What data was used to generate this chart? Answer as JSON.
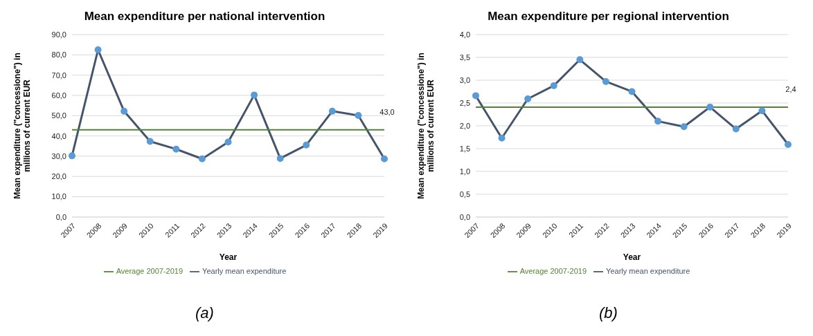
{
  "chart_data": [
    {
      "type": "line",
      "title": "Mean expenditure per national intervention",
      "xlabel": "Year",
      "ylabel": "Mean expenditure (\"concessione\") in millions of current EUR",
      "categories": [
        "2007",
        "2008",
        "2009",
        "2010",
        "2011",
        "2012",
        "2013",
        "2014",
        "2015",
        "2016",
        "2017",
        "2018",
        "2019"
      ],
      "series": [
        {
          "name": "Yearly mean expenditure",
          "color": "#44546a",
          "marker": "circle",
          "values": [
            30.2,
            82.5,
            52.2,
            37.3,
            33.5,
            28.7,
            37.0,
            60.2,
            28.9,
            35.5,
            52.2,
            50.1,
            28.7
          ]
        },
        {
          "name": "Average 2007-2019",
          "color": "#548235",
          "marker": "none",
          "values": [
            43.0,
            43.0,
            43.0,
            43.0,
            43.0,
            43.0,
            43.0,
            43.0,
            43.0,
            43.0,
            43.0,
            43.0,
            43.0
          ],
          "value_labels": [
            null,
            null,
            null,
            null,
            null,
            null,
            null,
            null,
            null,
            null,
            null,
            null,
            "43,0"
          ]
        }
      ],
      "ylim": [
        0,
        90
      ],
      "yticks": [
        {
          "value": 0,
          "label": "0,0"
        },
        {
          "value": 10,
          "label": "10,0"
        },
        {
          "value": 20,
          "label": "20,0"
        },
        {
          "value": 30,
          "label": "30,0"
        },
        {
          "value": 40,
          "label": "40,0"
        },
        {
          "value": 50,
          "label": "50,0"
        },
        {
          "value": 60,
          "label": "60,0"
        },
        {
          "value": 70,
          "label": "70,0"
        },
        {
          "value": 80,
          "label": "80,0"
        },
        {
          "value": 90,
          "label": "90,0"
        }
      ],
      "grid": "y",
      "legend": "bottom",
      "line_style": "solid",
      "annotations": [
        "(a)"
      ]
    },
    {
      "type": "line",
      "title": "Mean expenditure per regional intervention",
      "xlabel": "Year",
      "ylabel": "Mean expenditure (\"concessione\") in millions of current EUR",
      "categories": [
        "2007",
        "2008",
        "2009",
        "2010",
        "2011",
        "2012",
        "2013",
        "2014",
        "2015",
        "2016",
        "2017",
        "2018",
        "2019"
      ],
      "series": [
        {
          "name": "Yearly mean expenditure",
          "color": "#44546a",
          "marker": "circle",
          "values": [
            2.66,
            1.73,
            2.59,
            2.88,
            3.45,
            2.97,
            2.75,
            2.1,
            1.98,
            2.41,
            1.93,
            2.33,
            1.59
          ]
        },
        {
          "name": "Average 2007-2019",
          "color": "#548235",
          "marker": "none",
          "values": [
            2.41,
            2.41,
            2.41,
            2.41,
            2.41,
            2.41,
            2.41,
            2.41,
            2.41,
            2.41,
            2.41,
            2.41,
            2.41
          ],
          "value_labels": [
            null,
            null,
            null,
            null,
            null,
            null,
            null,
            null,
            null,
            null,
            null,
            null,
            "2,4"
          ]
        }
      ],
      "ylim": [
        0,
        4
      ],
      "yticks": [
        {
          "value": 0,
          "label": "0,0"
        },
        {
          "value": 0.5,
          "label": "0,5"
        },
        {
          "value": 1,
          "label": "1,0"
        },
        {
          "value": 1.5,
          "label": "1,5"
        },
        {
          "value": 2,
          "label": "2,0"
        },
        {
          "value": 2.5,
          "label": "2,5"
        },
        {
          "value": 3,
          "label": "3,0"
        },
        {
          "value": 3.5,
          "label": "3,5"
        },
        {
          "value": 4,
          "label": "4,0"
        }
      ],
      "grid": "y",
      "legend": "bottom",
      "line_style": "solid",
      "annotations": [
        "(b)"
      ]
    }
  ]
}
